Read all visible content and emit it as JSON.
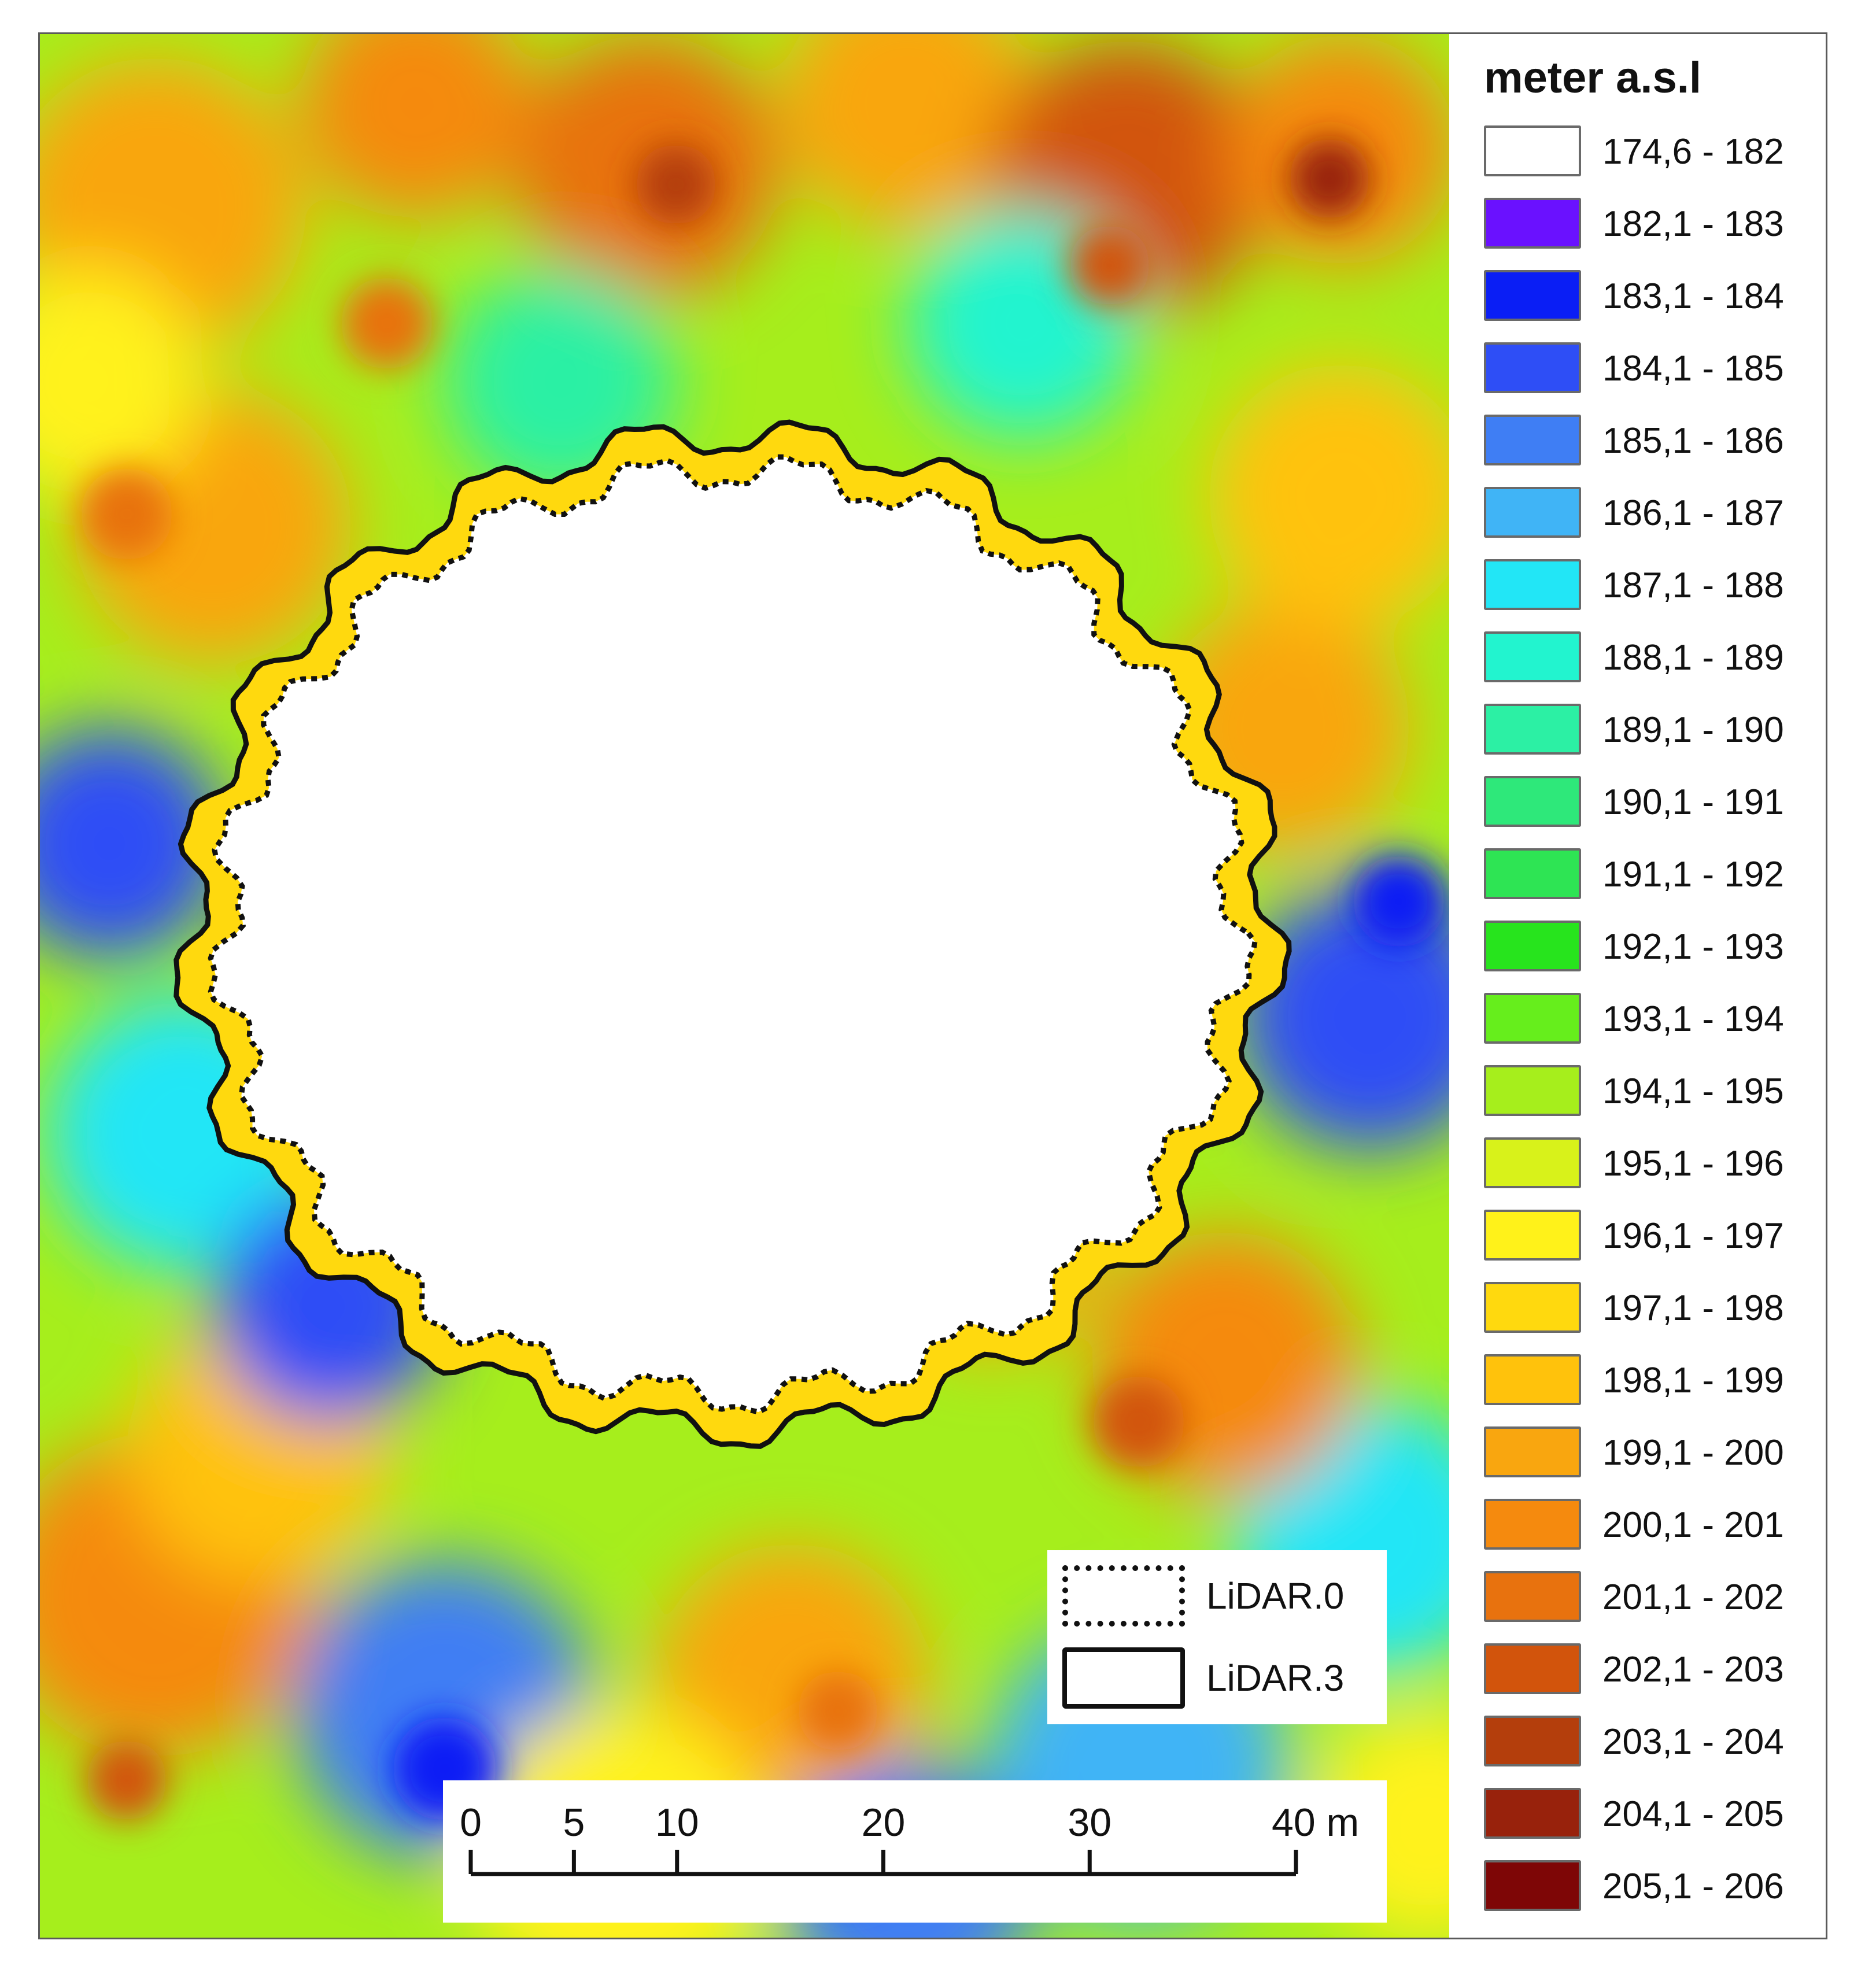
{
  "legend": {
    "title": "meter a.s.l",
    "classes": [
      {
        "label": "174,6 - 182",
        "color": "#ffffff"
      },
      {
        "label": "182,1 - 183",
        "color": "#6a11ff"
      },
      {
        "label": "183,1 - 184",
        "color": "#0a1ef5"
      },
      {
        "label": "184,1 - 185",
        "color": "#2e4ef6"
      },
      {
        "label": "185,1 - 186",
        "color": "#3f7ef4"
      },
      {
        "label": "186,1 - 187",
        "color": "#40b4f6"
      },
      {
        "label": "187,1 - 188",
        "color": "#22e6f6"
      },
      {
        "label": "188,1 - 189",
        "color": "#22f4cf"
      },
      {
        "label": "189,1 - 190",
        "color": "#2cf0a4"
      },
      {
        "label": "190,1 - 191",
        "color": "#2ee87a"
      },
      {
        "label": "191,1 - 192",
        "color": "#2ee454"
      },
      {
        "label": "192,1 - 193",
        "color": "#27e41d"
      },
      {
        "label": "193,1 - 194",
        "color": "#66ee1c"
      },
      {
        "label": "194,1 - 195",
        "color": "#a6ee1c"
      },
      {
        "label": "195,1 - 196",
        "color": "#d8f21a"
      },
      {
        "label": "196,1 - 197",
        "color": "#fff21a"
      },
      {
        "label": "197,1 - 198",
        "color": "#ffd90e"
      },
      {
        "label": "198,1 - 199",
        "color": "#ffc20c"
      },
      {
        "label": "199,1 - 200",
        "color": "#f9a60f"
      },
      {
        "label": "200,1 - 201",
        "color": "#f58a0e"
      },
      {
        "label": "201,1 - 202",
        "color": "#e8720e"
      },
      {
        "label": "202,1 - 203",
        "color": "#d2540c"
      },
      {
        "label": "203,1 - 204",
        "color": "#b43e0c"
      },
      {
        "label": "204,1 - 205",
        "color": "#98220c"
      },
      {
        "label": "205,1 - 206",
        "color": "#7e0606"
      }
    ]
  },
  "boundaries": {
    "lidar0_label": "LiDAR.0",
    "lidar3_label": "LiDAR.3"
  },
  "scalebar": {
    "ticks": [
      {
        "label": "0",
        "value": 0
      },
      {
        "label": "5",
        "value": 5
      },
      {
        "label": "10",
        "value": 10
      },
      {
        "label": "20",
        "value": 20
      },
      {
        "label": "30",
        "value": 30
      },
      {
        "label": "40 m",
        "value": 40
      }
    ],
    "max_value": 40
  }
}
